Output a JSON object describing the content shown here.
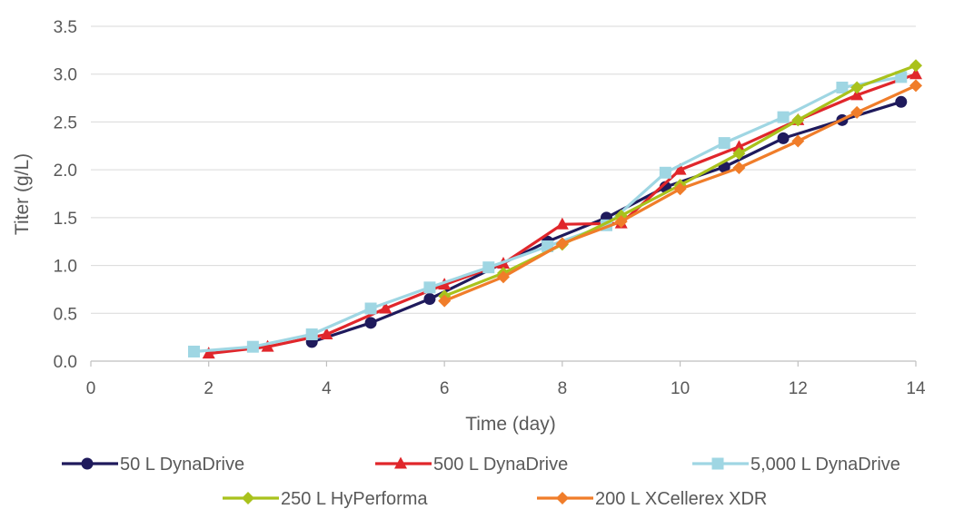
{
  "chart_data": {
    "type": "line",
    "title": "",
    "xlabel": "Time (day)",
    "ylabel": "Titer (g/L)",
    "xlim": [
      0,
      14
    ],
    "ylim": [
      0,
      3.5
    ],
    "x_ticks": [
      "0",
      "2",
      "4",
      "6",
      "8",
      "10",
      "12",
      "14"
    ],
    "y_ticks": [
      "0.0",
      "0.5",
      "1.0",
      "1.5",
      "2.0",
      "2.5",
      "3.0",
      "3.5"
    ],
    "grid": "horizontal",
    "legend_position": "bottom",
    "series": [
      {
        "name": "50 L DynaDrive",
        "color": "#1f1a5c",
        "marker": "circle",
        "points": [
          [
            3.75,
            0.2
          ],
          [
            4.75,
            0.4
          ],
          [
            5.75,
            0.65
          ],
          [
            7.75,
            1.25
          ],
          [
            8.75,
            1.5
          ],
          [
            9.75,
            1.82
          ],
          [
            10.75,
            2.03
          ],
          [
            11.75,
            2.33
          ],
          [
            12.75,
            2.52
          ],
          [
            13.75,
            2.71
          ]
        ]
      },
      {
        "name": "500 L DynaDrive",
        "color": "#e0262b",
        "marker": "triangle",
        "points": [
          [
            2,
            0.08
          ],
          [
            3,
            0.15
          ],
          [
            4,
            0.28
          ],
          [
            5,
            0.55
          ],
          [
            6,
            0.8
          ],
          [
            7,
            1.02
          ],
          [
            8,
            1.43
          ],
          [
            9,
            1.44
          ],
          [
            10,
            2.0
          ],
          [
            11,
            2.24
          ],
          [
            12,
            2.52
          ],
          [
            13,
            2.78
          ],
          [
            14,
            3.0
          ]
        ]
      },
      {
        "name": "5,000 L DynaDrive",
        "color": "#9fd6e3",
        "marker": "square",
        "points": [
          [
            1.75,
            0.1
          ],
          [
            2.75,
            0.15
          ],
          [
            3.75,
            0.28
          ],
          [
            4.75,
            0.55
          ],
          [
            5.75,
            0.77
          ],
          [
            6.75,
            0.98
          ],
          [
            7.75,
            1.2
          ],
          [
            8.75,
            1.42
          ],
          [
            9.75,
            1.97
          ],
          [
            10.75,
            2.28
          ],
          [
            11.75,
            2.55
          ],
          [
            12.75,
            2.86
          ],
          [
            13.75,
            2.97
          ]
        ]
      },
      {
        "name": "250 L HyPerforma",
        "color": "#a9c21c",
        "marker": "diamond",
        "points": [
          [
            6,
            0.68
          ],
          [
            7,
            0.92
          ],
          [
            8,
            1.22
          ],
          [
            9,
            1.52
          ],
          [
            10,
            1.84
          ],
          [
            11,
            2.17
          ],
          [
            12,
            2.52
          ],
          [
            13,
            2.86
          ],
          [
            14,
            3.09
          ]
        ]
      },
      {
        "name": "200 L XCellerex XDR",
        "color": "#f07d2a",
        "marker": "diamond",
        "points": [
          [
            6,
            0.63
          ],
          [
            7,
            0.88
          ],
          [
            8,
            1.23
          ],
          [
            9,
            1.46
          ],
          [
            10,
            1.8
          ],
          [
            11,
            2.02
          ],
          [
            12,
            2.3
          ],
          [
            13,
            2.6
          ],
          [
            14,
            2.88
          ]
        ]
      }
    ]
  }
}
